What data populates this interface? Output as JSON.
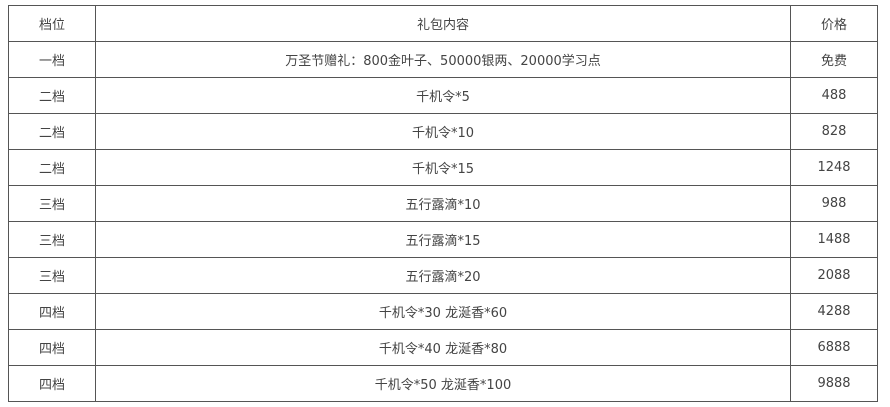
{
  "table": {
    "headers": [
      "档位",
      "礼包内容",
      "价格"
    ],
    "rows": [
      [
        "一档",
        "万圣节赠礼：800金叶子、50000银两、20000学习点",
        "免费"
      ],
      [
        "二档",
        "千机令*5",
        "488"
      ],
      [
        "二档",
        "千机令*10",
        "828"
      ],
      [
        "二档",
        "千机令*15",
        "1248"
      ],
      [
        "三档",
        "五行露滴*10",
        "988"
      ],
      [
        "三档",
        "五行露滴*15",
        "1488"
      ],
      [
        "三档",
        "五行露滴*20",
        "2088"
      ],
      [
        "四档",
        "千机令*30 龙涎香*60",
        "4288"
      ],
      [
        "四档",
        "千机令*40 龙涎香*80",
        "6888"
      ],
      [
        "四档",
        "千机令*50 龙涎香*100",
        "9888"
      ]
    ]
  }
}
